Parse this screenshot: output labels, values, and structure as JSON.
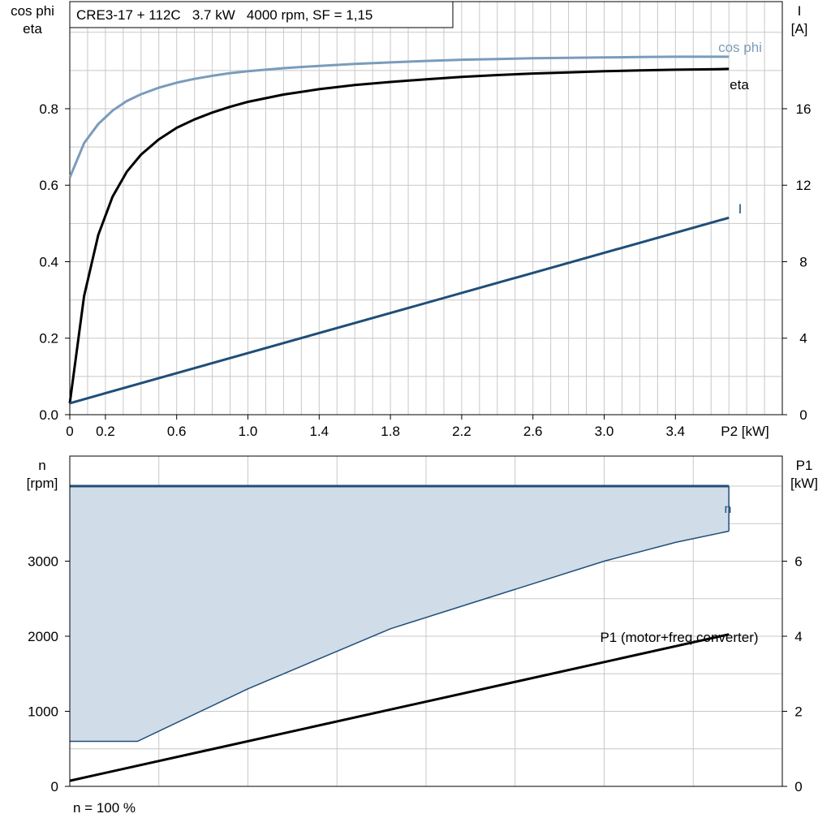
{
  "chart_data": [
    {
      "type": "line",
      "title": "CRE3-17 + 112C   3.7 kW   4000 rpm, SF = 1,15",
      "xlabel": "P2 [kW]",
      "ylabel_left": [
        "cos phi",
        "eta"
      ],
      "ylabel_right": [
        "I",
        "[A]"
      ],
      "xlim": [
        0,
        4.0
      ],
      "ylim_left": [
        0,
        1.08
      ],
      "ylim_right": [
        0,
        21.6
      ],
      "grid": true,
      "x_tick_labels": [
        "0",
        "0.2",
        "0.6",
        "1.0",
        "1.4",
        "1.8",
        "2.2",
        "2.6",
        "3.0",
        "3.4"
      ],
      "y_left_tick_labels": [
        "0.0",
        "0.2",
        "0.4",
        "0.6",
        "0.8"
      ],
      "y_right_tick_labels": [
        "0",
        "4",
        "8",
        "12",
        "16"
      ],
      "series": [
        {
          "name": "cos phi",
          "axis": "left",
          "color": "#7a9cbc",
          "x": [
            0.0,
            0.08,
            0.16,
            0.24,
            0.32,
            0.4,
            0.5,
            0.6,
            0.7,
            0.8,
            0.9,
            1.0,
            1.2,
            1.4,
            1.6,
            1.8,
            2.0,
            2.2,
            2.4,
            2.6,
            2.8,
            3.0,
            3.2,
            3.4,
            3.6,
            3.7
          ],
          "values": [
            0.62,
            0.71,
            0.76,
            0.795,
            0.82,
            0.838,
            0.855,
            0.868,
            0.878,
            0.886,
            0.893,
            0.898,
            0.906,
            0.912,
            0.917,
            0.921,
            0.925,
            0.928,
            0.93,
            0.932,
            0.933,
            0.934,
            0.935,
            0.936,
            0.936,
            0.936
          ]
        },
        {
          "name": "eta",
          "axis": "left",
          "color": "#000000",
          "x": [
            0.0,
            0.08,
            0.16,
            0.24,
            0.32,
            0.4,
            0.5,
            0.6,
            0.7,
            0.8,
            0.9,
            1.0,
            1.2,
            1.4,
            1.6,
            1.8,
            2.0,
            2.2,
            2.4,
            2.6,
            2.8,
            3.0,
            3.2,
            3.4,
            3.6,
            3.7
          ],
          "values": [
            0.03,
            0.31,
            0.47,
            0.57,
            0.635,
            0.68,
            0.72,
            0.75,
            0.772,
            0.79,
            0.805,
            0.818,
            0.837,
            0.851,
            0.862,
            0.87,
            0.877,
            0.883,
            0.888,
            0.892,
            0.895,
            0.898,
            0.9,
            0.902,
            0.903,
            0.904
          ]
        },
        {
          "name": "I",
          "axis": "right",
          "color": "#1f4e79",
          "x": [
            0.0,
            3.7
          ],
          "values": [
            0.6,
            10.3
          ]
        }
      ]
    },
    {
      "type": "area",
      "xlabel": "",
      "ylabel_left": [
        "n",
        "[rpm]"
      ],
      "ylabel_right": [
        "P1",
        "[kW]"
      ],
      "xlim": [
        0,
        4.0
      ],
      "ylim_left": [
        0,
        4400
      ],
      "ylim_right": [
        0,
        8.8
      ],
      "grid": true,
      "y_left_tick_labels": [
        "0",
        "1000",
        "2000",
        "3000"
      ],
      "y_right_tick_labels": [
        "0",
        "2",
        "4",
        "6"
      ],
      "footnote": "n = 100 %",
      "series": [
        {
          "name": "n",
          "axis": "left",
          "color": "#1f4e79",
          "fill": "#d0dce8",
          "upper_x": [
            0.0,
            3.7
          ],
          "upper_values": [
            4000,
            4000
          ],
          "lower_x": [
            0.0,
            0.38,
            1.0,
            1.4,
            1.8,
            2.2,
            2.6,
            3.0,
            3.4,
            3.7
          ],
          "lower_values": [
            600,
            600,
            1300,
            1700,
            2100,
            2400,
            2700,
            3000,
            3250,
            3400
          ]
        },
        {
          "name": "P1 (motor+freq.converter)",
          "axis": "right",
          "color": "#000000",
          "x": [
            0.0,
            3.7
          ],
          "values": [
            0.15,
            4.05
          ]
        }
      ]
    }
  ]
}
